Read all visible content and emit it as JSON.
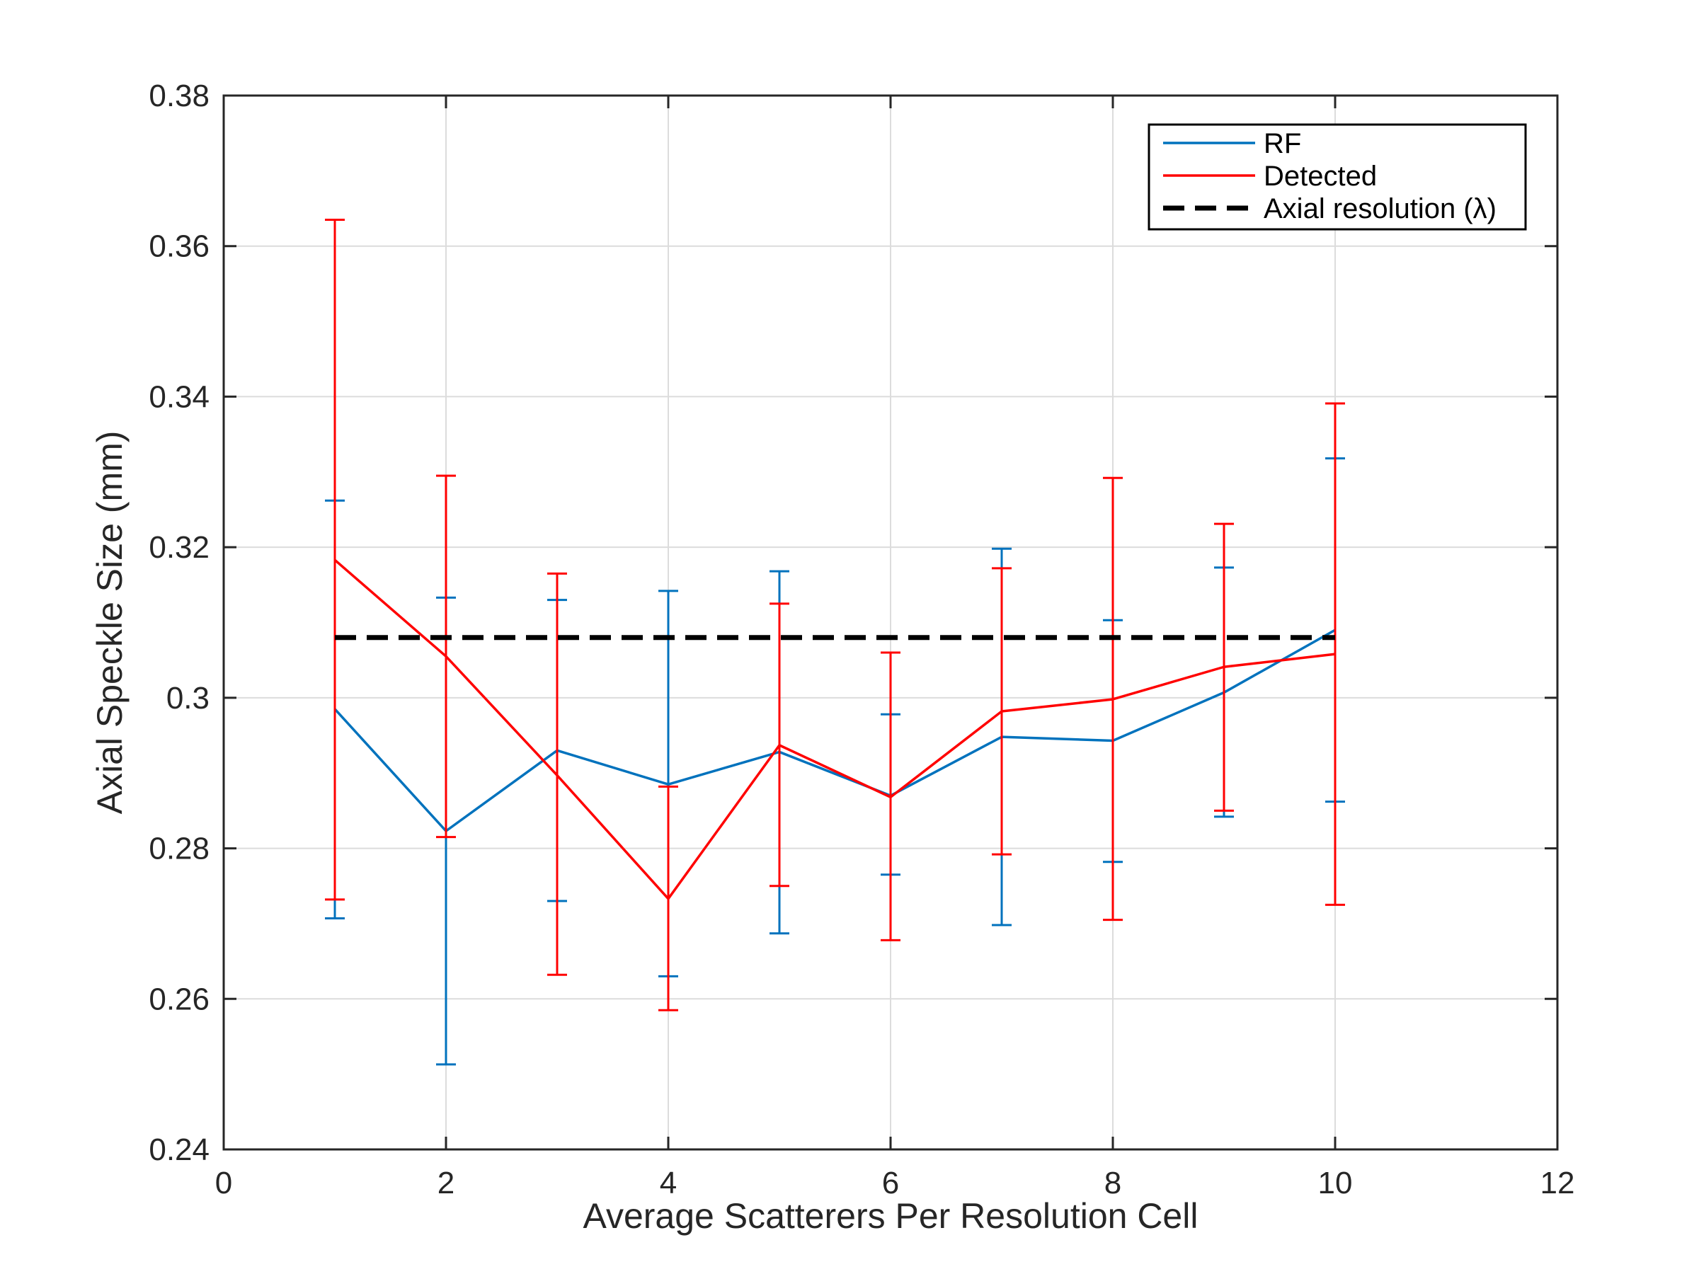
{
  "chart_data": {
    "type": "line",
    "xlabel": "Average Scatterers Per Resolution Cell",
    "ylabel": "Axial Speckle Size (mm)",
    "xlim": [
      0,
      12
    ],
    "ylim": [
      0.24,
      0.38
    ],
    "xticks": [
      0,
      2,
      4,
      6,
      8,
      10,
      12
    ],
    "yticks": [
      0.24,
      0.26,
      0.28,
      0.3,
      0.32,
      0.34,
      0.36,
      0.38
    ],
    "xtick_labels": [
      "0",
      "2",
      "4",
      "6",
      "8",
      "10",
      "12"
    ],
    "ytick_labels": [
      "0.24",
      "0.26",
      "0.28",
      "0.3",
      "0.32",
      "0.34",
      "0.36",
      "0.38"
    ],
    "grid": true,
    "legend_position": "top-right",
    "series": [
      {
        "name": "RF",
        "color": "#0072BD",
        "x": [
          1,
          2,
          3,
          4,
          5,
          6,
          7,
          8,
          9,
          10
        ],
        "y": [
          0.2985,
          0.2823,
          0.293,
          0.2885,
          0.2928,
          0.287,
          0.2948,
          0.2943,
          0.3007,
          0.309
        ],
        "err_low": [
          0.2707,
          0.2513,
          0.273,
          0.263,
          0.2687,
          0.2765,
          0.2698,
          0.2782,
          0.2842,
          0.2862
        ],
        "err_high": [
          0.3262,
          0.3133,
          0.313,
          0.3142,
          0.3168,
          0.2978,
          0.3198,
          0.3103,
          0.3173,
          0.3318
        ]
      },
      {
        "name": "Detected",
        "color": "#FF0000",
        "x": [
          1,
          2,
          3,
          4,
          5,
          6,
          7,
          8,
          9,
          10
        ],
        "y": [
          0.3183,
          0.3055,
          0.2897,
          0.2733,
          0.2937,
          0.2868,
          0.2982,
          0.2998,
          0.3041,
          0.3058
        ],
        "err_low": [
          0.2732,
          0.2815,
          0.2632,
          0.2585,
          0.275,
          0.2678,
          0.2792,
          0.2705,
          0.285,
          0.2725
        ],
        "err_high": [
          0.3635,
          0.3295,
          0.3165,
          0.2882,
          0.3125,
          0.306,
          0.3172,
          0.3292,
          0.3231,
          0.3391
        ]
      },
      {
        "name": "Axial resolution (λ)",
        "color": "#000000",
        "style": "dashed",
        "x": [
          1,
          10
        ],
        "y": [
          0.308,
          0.308
        ]
      }
    ]
  }
}
